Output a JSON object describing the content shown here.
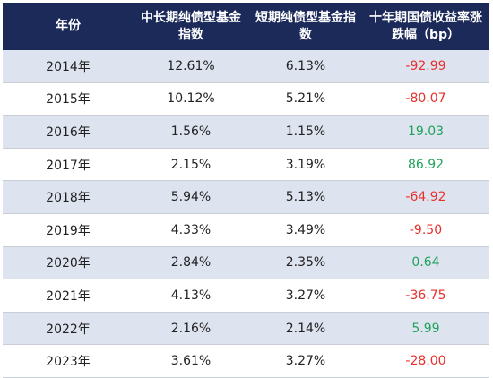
{
  "chart_data": {
    "type": "table",
    "columns": [
      "年份",
      "中长期纯债型基金指数",
      "短期纯债型基金指数",
      "十年期国债收益率涨跌幅（bp）"
    ],
    "rows": [
      {
        "year": "2014年",
        "mid_long": "12.61%",
        "short": "6.13%",
        "bp": "-92.99",
        "bp_value": -92.99
      },
      {
        "year": "2015年",
        "mid_long": "10.12%",
        "short": "5.21%",
        "bp": "-80.07",
        "bp_value": -80.07
      },
      {
        "year": "2016年",
        "mid_long": "1.56%",
        "short": "1.15%",
        "bp": "19.03",
        "bp_value": 19.03
      },
      {
        "year": "2017年",
        "mid_long": "2.15%",
        "short": "3.19%",
        "bp": "86.92",
        "bp_value": 86.92
      },
      {
        "year": "2018年",
        "mid_long": "5.94%",
        "short": "5.13%",
        "bp": "-64.92",
        "bp_value": -64.92
      },
      {
        "year": "2019年",
        "mid_long": "4.33%",
        "short": "3.49%",
        "bp": "-9.50",
        "bp_value": -9.5
      },
      {
        "year": "2020年",
        "mid_long": "2.84%",
        "short": "2.35%",
        "bp": "0.64",
        "bp_value": 0.64
      },
      {
        "year": "2021年",
        "mid_long": "4.13%",
        "short": "3.27%",
        "bp": "-36.75",
        "bp_value": -36.75
      },
      {
        "year": "2022年",
        "mid_long": "2.16%",
        "short": "2.14%",
        "bp": "5.99",
        "bp_value": 5.99
      },
      {
        "year": "2023年",
        "mid_long": "3.61%",
        "short": "3.27%",
        "bp": "-28.00",
        "bp_value": -28.0
      }
    ]
  },
  "colors": {
    "header_bg": "#1c2a5a",
    "header_text": "#ffffff",
    "row_band": "#dee3f0",
    "negative": "#e8302c",
    "positive": "#1fa35a"
  }
}
